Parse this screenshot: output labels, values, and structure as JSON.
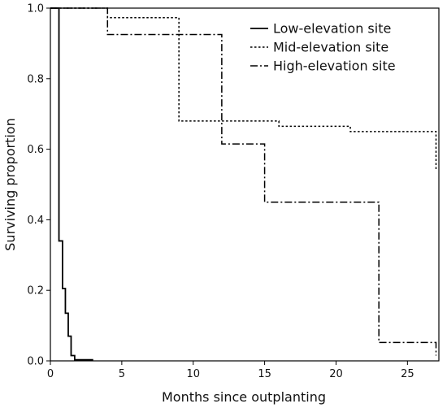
{
  "chart_data": {
    "type": "line",
    "subtype": "step (Kaplan-Meier survival)",
    "xlabel": "Months since outplanting",
    "ylabel": "Surviving proportion",
    "xlim": [
      0,
      27.2
    ],
    "ylim": [
      0,
      1.0
    ],
    "xticks": [
      0,
      5,
      10,
      15,
      20,
      25
    ],
    "yticks": [
      0.0,
      0.2,
      0.4,
      0.6,
      0.8,
      1.0
    ],
    "xtick_labels": [
      "0",
      "5",
      "10",
      "15",
      "20",
      "25"
    ],
    "ytick_labels": [
      "0.0",
      "0.2",
      "0.4",
      "0.6",
      "0.8",
      "1.0"
    ],
    "grid": false,
    "legend_position": "top-right",
    "series": [
      {
        "name": "Low-elevation site",
        "line_style": "solid",
        "color": "#000000",
        "points": [
          [
            0,
            1.0
          ],
          [
            0.6,
            1.0
          ],
          [
            0.6,
            0.34
          ],
          [
            0.85,
            0.34
          ],
          [
            0.85,
            0.205
          ],
          [
            1.05,
            0.205
          ],
          [
            1.05,
            0.135
          ],
          [
            1.25,
            0.135
          ],
          [
            1.25,
            0.07
          ],
          [
            1.45,
            0.07
          ],
          [
            1.45,
            0.015
          ],
          [
            1.7,
            0.015
          ],
          [
            1.7,
            0.003
          ],
          [
            3.0,
            0.003
          ]
        ]
      },
      {
        "name": "Mid-elevation site",
        "line_style": "dotted",
        "color": "#000000",
        "points": [
          [
            0,
            1.0
          ],
          [
            4.0,
            1.0
          ],
          [
            4.0,
            0.973
          ],
          [
            9.0,
            0.973
          ],
          [
            9.0,
            0.68
          ],
          [
            16.0,
            0.68
          ],
          [
            16.0,
            0.665
          ],
          [
            21.0,
            0.665
          ],
          [
            21.0,
            0.65
          ],
          [
            27.0,
            0.65
          ],
          [
            27.0,
            0.54
          ]
        ]
      },
      {
        "name": "High-elevation site",
        "line_style": "dash-dot",
        "color": "#000000",
        "points": [
          [
            0,
            1.0
          ],
          [
            4.0,
            1.0
          ],
          [
            4.0,
            0.925
          ],
          [
            12.0,
            0.925
          ],
          [
            12.0,
            0.615
          ],
          [
            15.0,
            0.615
          ],
          [
            15.0,
            0.45
          ],
          [
            23.0,
            0.45
          ],
          [
            23.0,
            0.052
          ],
          [
            27.0,
            0.052
          ],
          [
            27.0,
            0.015
          ]
        ]
      }
    ]
  }
}
